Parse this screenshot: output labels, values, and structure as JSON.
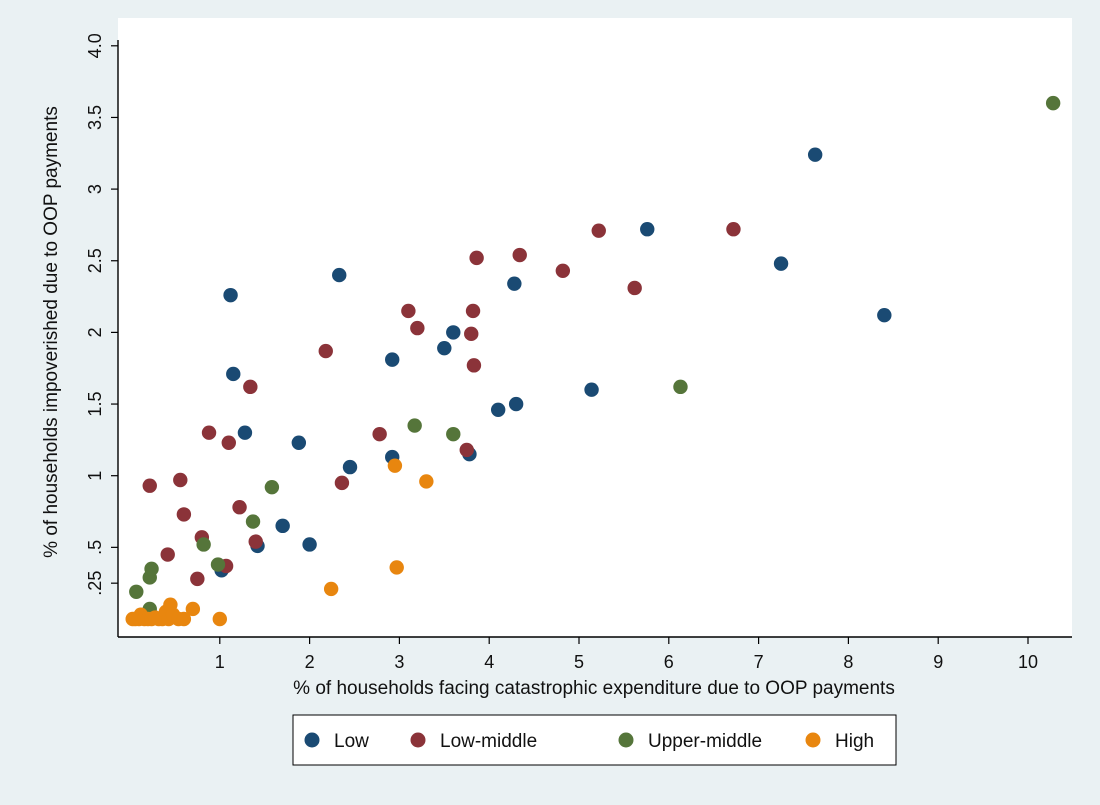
{
  "chart_data": {
    "type": "scatter",
    "title": "",
    "xlabel": "% of households facing catastrophic expenditure due to OOP payments",
    "ylabel": "% of households impoverished due to OOP payments",
    "xlim": [
      0,
      10
    ],
    "ylim": [
      0,
      4.0
    ],
    "x_ticks": [
      1,
      2,
      3,
      4,
      5,
      6,
      7,
      8,
      9,
      10
    ],
    "x_tick_labels": [
      "1",
      "2",
      "3",
      "4",
      "5",
      "6",
      "7",
      "8",
      "9",
      "10"
    ],
    "y_ticks": [
      0.25,
      0.5,
      1,
      1.5,
      2,
      2.5,
      3,
      3.5,
      4.0
    ],
    "y_tick_labels": [
      ".25",
      ".5",
      "1",
      "1.5",
      "2",
      "2.5",
      "3",
      "3.5",
      "4.0"
    ],
    "grid": false,
    "legend_position": "bottom",
    "series": [
      {
        "name": "Low",
        "color": "#1a4a73",
        "points": [
          [
            1.12,
            2.26
          ],
          [
            1.15,
            1.71
          ],
          [
            1.28,
            1.3
          ],
          [
            1.88,
            1.23
          ],
          [
            2.33,
            2.4
          ],
          [
            2.45,
            1.06
          ],
          [
            1.7,
            0.65
          ],
          [
            2.0,
            0.52
          ],
          [
            1.42,
            0.51
          ],
          [
            1.02,
            0.34
          ],
          [
            2.92,
            1.81
          ],
          [
            2.92,
            1.13
          ],
          [
            3.5,
            1.89
          ],
          [
            3.6,
            2.0
          ],
          [
            3.78,
            1.15
          ],
          [
            4.1,
            1.46
          ],
          [
            4.28,
            2.34
          ],
          [
            4.3,
            1.5
          ],
          [
            5.14,
            1.6
          ],
          [
            5.76,
            2.72
          ],
          [
            7.25,
            2.48
          ],
          [
            7.63,
            3.24
          ],
          [
            8.4,
            2.12
          ]
        ]
      },
      {
        "name": "Low-middle",
        "color": "#8b3339",
        "points": [
          [
            0.22,
            0.93
          ],
          [
            0.42,
            0.45
          ],
          [
            0.56,
            0.97
          ],
          [
            0.6,
            0.73
          ],
          [
            0.75,
            0.28
          ],
          [
            0.8,
            0.57
          ],
          [
            0.88,
            1.3
          ],
          [
            1.07,
            0.37
          ],
          [
            1.1,
            1.23
          ],
          [
            1.22,
            0.78
          ],
          [
            1.34,
            1.62
          ],
          [
            1.4,
            0.54
          ],
          [
            2.18,
            1.87
          ],
          [
            2.36,
            0.95
          ],
          [
            2.78,
            1.29
          ],
          [
            3.1,
            2.15
          ],
          [
            3.2,
            2.03
          ],
          [
            3.75,
            1.18
          ],
          [
            3.8,
            1.99
          ],
          [
            3.82,
            2.15
          ],
          [
            3.83,
            1.77
          ],
          [
            3.86,
            2.52
          ],
          [
            4.34,
            2.54
          ],
          [
            4.82,
            2.43
          ],
          [
            5.22,
            2.71
          ],
          [
            5.62,
            2.31
          ],
          [
            6.72,
            2.72
          ]
        ]
      },
      {
        "name": "Upper-middle",
        "color": "#55753a",
        "points": [
          [
            0.07,
            0.19
          ],
          [
            0.22,
            0.29
          ],
          [
            0.24,
            0.35
          ],
          [
            0.22,
            0.07
          ],
          [
            0.82,
            0.52
          ],
          [
            0.98,
            0.38
          ],
          [
            1.37,
            0.68
          ],
          [
            1.58,
            0.92
          ],
          [
            3.17,
            1.35
          ],
          [
            3.6,
            1.29
          ],
          [
            6.13,
            1.62
          ],
          [
            10.28,
            3.6
          ]
        ]
      },
      {
        "name": "High",
        "color": "#e8860f",
        "points": [
          [
            0.03,
            0.0
          ],
          [
            0.06,
            0.0
          ],
          [
            0.1,
            0.0
          ],
          [
            0.12,
            0.03
          ],
          [
            0.16,
            0.0
          ],
          [
            0.2,
            0.0
          ],
          [
            0.24,
            0.0
          ],
          [
            0.28,
            0.01
          ],
          [
            0.32,
            0.0
          ],
          [
            0.36,
            0.0
          ],
          [
            0.4,
            0.05
          ],
          [
            0.43,
            0.0
          ],
          [
            0.45,
            0.1
          ],
          [
            0.48,
            0.03
          ],
          [
            0.54,
            0.0
          ],
          [
            0.6,
            0.0
          ],
          [
            0.7,
            0.07
          ],
          [
            1.0,
            0.0
          ],
          [
            2.24,
            0.21
          ],
          [
            2.95,
            1.07
          ],
          [
            2.97,
            0.36
          ],
          [
            3.3,
            0.96
          ]
        ]
      }
    ]
  }
}
